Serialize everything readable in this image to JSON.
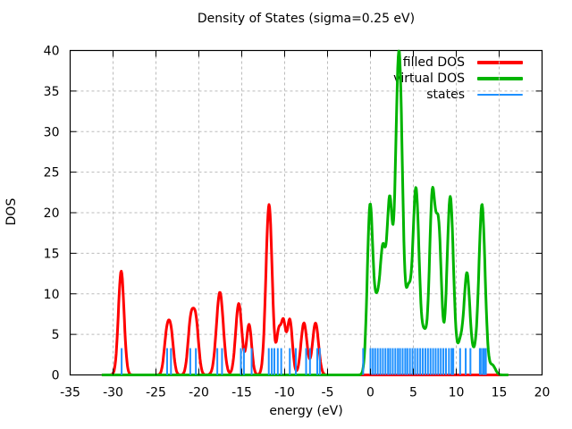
{
  "title": "Density of States (sigma=0.25 eV)",
  "axes": {
    "xlabel": "energy (eV)",
    "ylabel": "DOS",
    "x_ticks": [
      -35,
      -30,
      -25,
      -20,
      -15,
      -10,
      -5,
      0,
      5,
      10,
      15,
      20
    ],
    "y_ticks": [
      0,
      5,
      10,
      15,
      20,
      25,
      30,
      35,
      40
    ],
    "grid": "dashed-gray-at-major-ticks"
  },
  "colors": {
    "filled_dos": "#ff0000",
    "virtual_dos": "#00b400",
    "states": "#1e90ff",
    "grid": "#bbbbbb",
    "border": "#000000",
    "background": "#ffffff"
  },
  "legend": {
    "position": "top-right-inside",
    "entries": [
      "filled DOS",
      "virtual DOS",
      "states"
    ]
  },
  "chart_data": {
    "type": "line",
    "title": "Density of States (sigma=0.25 eV)",
    "xlabel": "energy (eV)",
    "ylabel": "DOS",
    "xlim": [
      -35,
      20
    ],
    "ylim": [
      0,
      40
    ],
    "sigma_eV": 0.25,
    "legend_position": "top-right",
    "grid": true,
    "series": [
      {
        "name": "filled DOS",
        "color": "#ff0000",
        "style": "line",
        "line_width": 3,
        "x_extent": [
          -31.2,
          16.0
        ],
        "gaussian_peaks_center_height_sigma": [
          [
            -29.05,
            12.8,
            0.33
          ],
          [
            -23.75,
            4.7,
            0.3
          ],
          [
            -23.25,
            4.9,
            0.3
          ],
          [
            -20.95,
            6.4,
            0.32
          ],
          [
            -20.35,
            6.4,
            0.32
          ],
          [
            -17.55,
            10.2,
            0.4
          ],
          [
            -15.35,
            8.8,
            0.36
          ],
          [
            -14.15,
            6.2,
            0.3
          ],
          [
            -11.82,
            21.0,
            0.36
          ],
          [
            -10.7,
            5.0,
            0.25
          ],
          [
            -10.15,
            6.2,
            0.26
          ],
          [
            -9.4,
            6.8,
            0.3
          ],
          [
            -7.75,
            6.4,
            0.35
          ],
          [
            -6.4,
            6.4,
            0.35
          ]
        ]
      },
      {
        "name": "virtual DOS",
        "color": "#00b400",
        "style": "line",
        "line_width": 3,
        "x_extent": [
          -31.2,
          16.0
        ],
        "gaussian_peaks_center_height_sigma": [
          [
            -0.05,
            20.5,
            0.32
          ],
          [
            0.75,
            8.0,
            0.35
          ],
          [
            1.45,
            14.0,
            0.32
          ],
          [
            2.25,
            21.0,
            0.33
          ],
          [
            3.05,
            15.0,
            0.3
          ],
          [
            3.45,
            32.0,
            0.35
          ],
          [
            4.4,
            9.0,
            0.3
          ],
          [
            5.3,
            23.0,
            0.38
          ],
          [
            6.3,
            4.5,
            0.3
          ],
          [
            7.2,
            21.5,
            0.33
          ],
          [
            7.95,
            17.5,
            0.33
          ],
          [
            9.3,
            22.0,
            0.38
          ],
          [
            10.45,
            3.5,
            0.3
          ],
          [
            11.25,
            12.5,
            0.35
          ],
          [
            12.15,
            2.0,
            0.3
          ],
          [
            13.0,
            21.0,
            0.36
          ],
          [
            14.2,
            1.2,
            0.35
          ]
        ]
      },
      {
        "name": "states",
        "color": "#1e90ff",
        "style": "impulse",
        "line_width": 2,
        "impulse_height": 3.3,
        "energies": [
          -29.0,
          -23.7,
          -23.25,
          -21.0,
          -20.35,
          -17.85,
          -17.3,
          -15.1,
          -14.75,
          -13.85,
          -11.85,
          -11.5,
          -11.2,
          -10.8,
          -10.4,
          -9.4,
          -8.7,
          -7.5,
          -7.05,
          -6.2,
          -5.9,
          -0.85,
          0.0,
          0.28,
          0.55,
          0.85,
          1.15,
          1.45,
          1.75,
          2.05,
          2.3,
          2.6,
          2.9,
          3.2,
          3.45,
          3.75,
          4.05,
          4.3,
          4.6,
          4.9,
          5.2,
          5.5,
          5.8,
          6.1,
          6.4,
          6.7,
          7.0,
          7.3,
          7.6,
          7.9,
          8.2,
          8.5,
          8.8,
          9.15,
          9.45,
          9.55,
          9.65,
          10.45,
          11.1,
          11.65,
          12.75,
          12.85,
          13.1,
          13.25,
          13.45
        ]
      }
    ]
  }
}
